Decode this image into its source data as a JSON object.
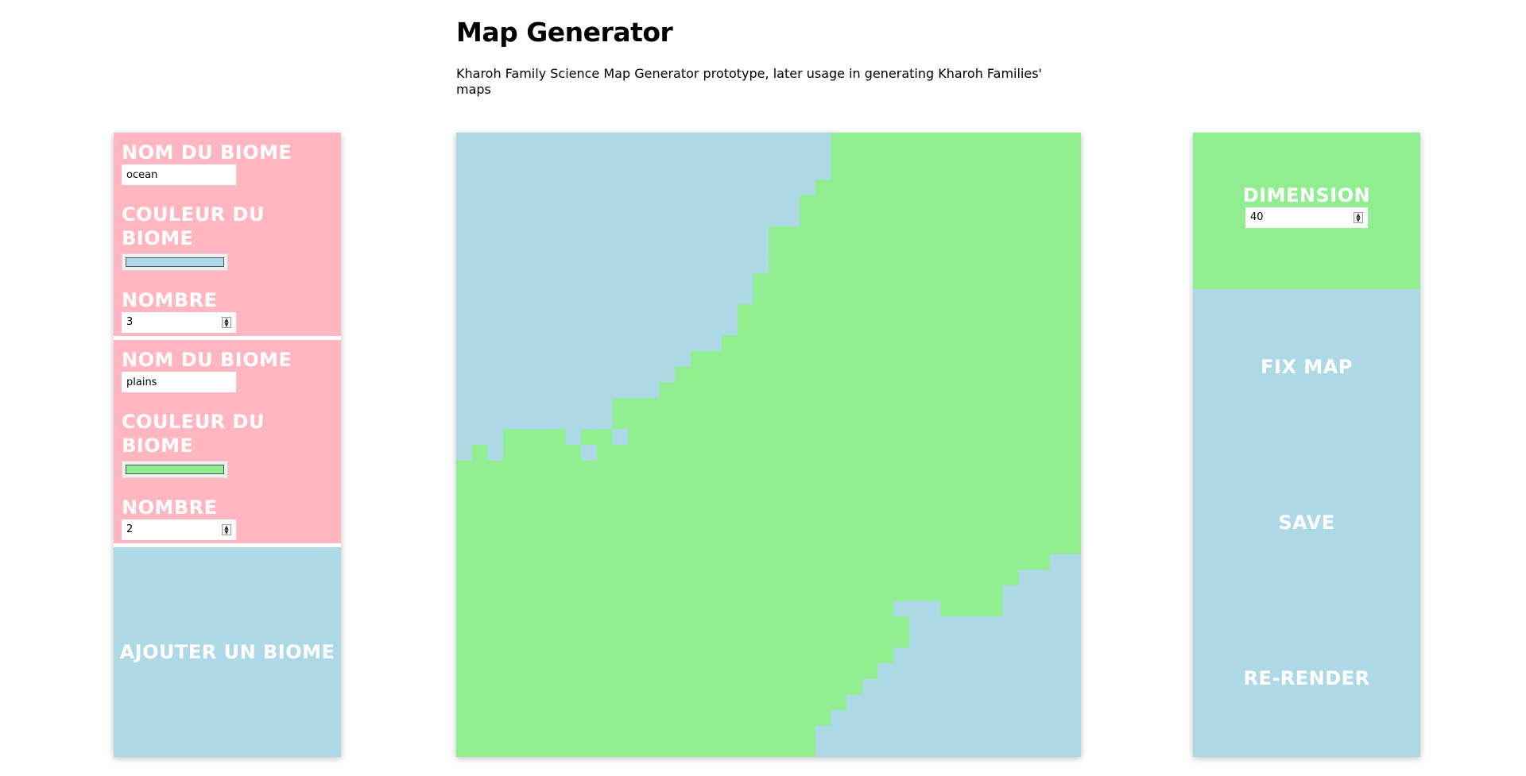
{
  "header": {
    "title": "Map Generator",
    "subtitle": "Kharoh Family Science Map Generator prototype, later usage in generating Kharoh Families' maps"
  },
  "biomes": [
    {
      "name_label": "NOM DU BIOME",
      "name_value": "ocean",
      "color_label": "COULEUR DU BIOME",
      "color": "#add8e6",
      "count_label": "NOMBRE",
      "count_value": "3"
    },
    {
      "name_label": "NOM DU BIOME",
      "name_value": "plains",
      "color_label": "COULEUR DU BIOME",
      "color": "#90ee90",
      "count_label": "NOMBRE",
      "count_value": "2"
    }
  ],
  "add_biome_label": "AJOUTER UN BIOME",
  "controls": {
    "dimension_label": "DIMENSION",
    "dimension_value": "40",
    "fix_map_label": "FIX MAP",
    "save_label": "SAVE",
    "rerender_label": "RE-RENDER"
  },
  "colors": {
    "biome_panel": "#ffb6c1",
    "ocean": "#add8e6",
    "plains": "#90ee90",
    "text_on_color": "#ffffff"
  },
  "map_grid": {
    "size": 40,
    "legend": {
      "0": "ocean",
      "1": "plains"
    },
    "rows": [
      "0000000000000000000000001111111111111111",
      "0000000000000000000000001111111111111111",
      "0000000000000000000000001111111111111111",
      "0000000000000000000000011111111111111111",
      "0000000000000000000000111111111111111111",
      "0000000000000000000000111111111111111111",
      "0000000000000000000011111111111111111111",
      "0000000000000000000011111111111111111111",
      "0000000000000000000011111111111111111111",
      "0000000000000000000111111111111111111111",
      "0000000000000000000111111111111111111111",
      "0000000000000000001111111111111111111111",
      "0000000000000000001111111111111111111111",
      "0000000000000000011111111111111111111111",
      "0000000000000001111111111111111111111111",
      "0000000000000011111111111111111111111111",
      "0000000000000111111111111111111111111111",
      "0000000000111111111111111111111111111111",
      "0000000000111111111111111111111111111111",
      "0001111011011111111111111111111111111111",
      "0101111101111111111111111111111111111111",
      "1111111111111111111111111111111111111111",
      "1111111111111111111111111111111111111111",
      "1111111111111111111111111111111111111111",
      "1111111111111111111111111111111111111111",
      "1111111111111111111111111111111111111111",
      "1111111111111111111111111111111111111111",
      "1111111111111111111111111111111111111100",
      "1111111111111111111111111111111111110000",
      "1111111111111111111111111111111111100000",
      "1111111111111111111111111111000111100000",
      "1111111111111111111111111111100000000000",
      "1111111111111111111111111111100000000000",
      "1111111111111111111111111111000000000000",
      "1111111111111111111111111110000000000000",
      "1111111111111111111111111100000000000000",
      "1111111111111111111111111000000000000000",
      "1111111111111111111111110000000000000000",
      "1111111111111111111111100000000000000000",
      "1111111111111111111111100000000000000000"
    ]
  }
}
